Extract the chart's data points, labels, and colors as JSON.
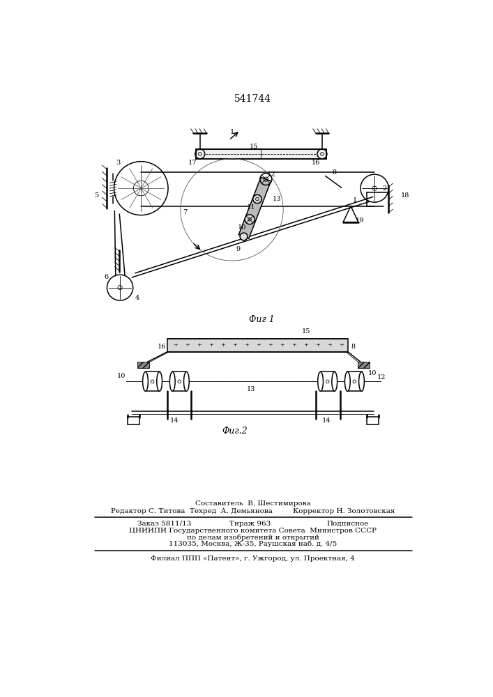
{
  "patent_number": "541744",
  "bg_color": "#ffffff",
  "line_color": "#000000",
  "fig1_label": "Фиг 1",
  "fig2_label": "Фиг.2",
  "footer_line1": "Составитель  В. Шестимирова",
  "footer_line2": "Редактор С. Титова  Техред  А. Демьянова         Корректор Н. Золотовская",
  "footer_line3a": "Заказ 5811/13",
  "footer_line3b": "Тираж 963",
  "footer_line3c": "Подписное",
  "footer_line4": "ЦНИИПИ Государственного комитета Совета  Министров СССР",
  "footer_line5": "по делам изобретений и открытий",
  "footer_line6": "113035, Москва, Ж-35, Раушская наб. д. 4/5",
  "footer_line7": "Филиал ППП «Патент», г. Ужгород, ул. Проектная, 4"
}
